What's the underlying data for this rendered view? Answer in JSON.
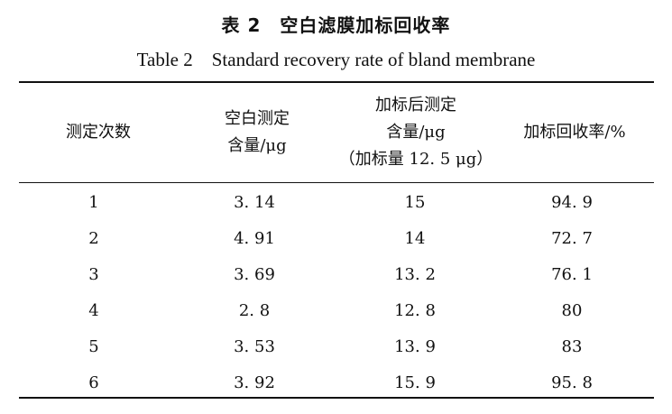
{
  "caption": {
    "title_cn": "表 2　空白滤膜加标回收率",
    "title_en": "Table 2　Standard recovery rate of bland membrane"
  },
  "table": {
    "headers": [
      {
        "lines": [
          "测定次数"
        ]
      },
      {
        "lines": [
          "空白测定",
          "含量/μg"
        ]
      },
      {
        "lines": [
          "加标后测定",
          "含量/μg",
          "（加标量 12. 5 μg）"
        ]
      },
      {
        "lines": [
          "加标回收率/%"
        ]
      }
    ],
    "rows": [
      [
        "1",
        "3. 14",
        "15",
        "94. 9"
      ],
      [
        "2",
        "4. 91",
        "14",
        "72. 7"
      ],
      [
        "3",
        "3. 69",
        "13. 2",
        "76. 1"
      ],
      [
        "4",
        "2. 8",
        "12. 8",
        "80"
      ],
      [
        "5",
        "3. 53",
        "13. 9",
        "83"
      ],
      [
        "6",
        "3. 92",
        "15. 9",
        "95. 8"
      ]
    ]
  }
}
